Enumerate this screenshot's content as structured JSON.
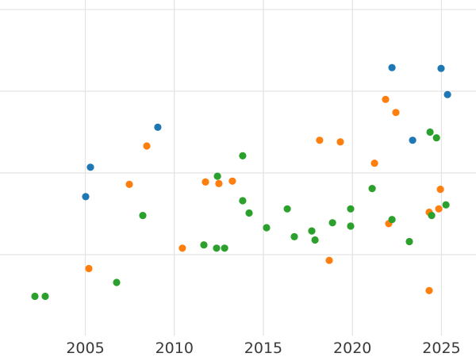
{
  "page": {
    "background_color": "#ffffff",
    "grid_color": "#e3e3e3",
    "tick_label_color": "#3a3a3a"
  },
  "chart_data": {
    "type": "scatter",
    "title": "",
    "xlabel": "",
    "ylabel": "",
    "legend_position": "none",
    "grid": true,
    "x_ticks": [
      "2005",
      "2010",
      "2015",
      "2020",
      "2025"
    ],
    "x_tick_values": [
      2005,
      2010,
      2015,
      2020,
      2025
    ],
    "x_range": [
      2000.21,
      2026.94
    ],
    "y_range": [
      0,
      4.117
    ],
    "y_gridline_values": [
      1,
      2,
      3,
      4
    ],
    "marker": {
      "shape": "circle",
      "radius_px": 4.6
    },
    "series": [
      {
        "name": "blue",
        "color": "#1f77b4",
        "points": [
          [
            2005.02,
            1.71
          ],
          [
            2005.29,
            2.07
          ],
          [
            2009.07,
            2.56
          ],
          [
            2022.22,
            3.29
          ],
          [
            2023.38,
            2.4
          ],
          [
            2024.98,
            3.28
          ],
          [
            2025.34,
            2.96
          ]
        ]
      },
      {
        "name": "orange",
        "color": "#ff7f0e",
        "points": [
          [
            2005.2,
            0.83
          ],
          [
            2007.47,
            1.86
          ],
          [
            2008.45,
            2.33
          ],
          [
            2010.45,
            1.08
          ],
          [
            2011.75,
            1.89
          ],
          [
            2012.5,
            1.87
          ],
          [
            2013.26,
            1.9
          ],
          [
            2018.16,
            2.4
          ],
          [
            2018.7,
            0.93
          ],
          [
            2019.32,
            2.38
          ],
          [
            2021.24,
            2.12
          ],
          [
            2021.86,
            2.9
          ],
          [
            2022.04,
            1.38
          ],
          [
            2022.44,
            2.74
          ],
          [
            2024.31,
            1.52
          ],
          [
            2024.31,
            0.56
          ],
          [
            2024.85,
            1.56
          ],
          [
            2024.94,
            1.8
          ]
        ]
      },
      {
        "name": "green",
        "color": "#2ca02c",
        "points": [
          [
            2002.17,
            0.49
          ],
          [
            2002.75,
            0.49
          ],
          [
            2006.76,
            0.66
          ],
          [
            2008.23,
            1.48
          ],
          [
            2011.66,
            1.12
          ],
          [
            2012.37,
            1.08
          ],
          [
            2012.82,
            1.08
          ],
          [
            2012.42,
            1.96
          ],
          [
            2013.84,
            2.21
          ],
          [
            2013.84,
            1.66
          ],
          [
            2014.2,
            1.51
          ],
          [
            2015.18,
            1.33
          ],
          [
            2016.34,
            1.56
          ],
          [
            2016.74,
            1.22
          ],
          [
            2017.72,
            1.29
          ],
          [
            2017.9,
            1.18
          ],
          [
            2018.88,
            1.39
          ],
          [
            2019.9,
            1.56
          ],
          [
            2019.9,
            1.35
          ],
          [
            2021.11,
            1.81
          ],
          [
            2022.22,
            1.43
          ],
          [
            2023.2,
            1.16
          ],
          [
            2024.36,
            2.5
          ],
          [
            2024.72,
            2.43
          ],
          [
            2024.45,
            1.48
          ],
          [
            2025.25,
            1.61
          ]
        ]
      }
    ]
  }
}
